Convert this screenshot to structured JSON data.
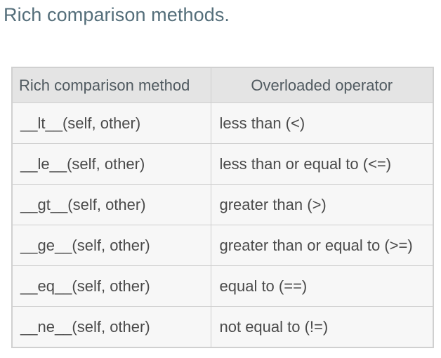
{
  "heading": "Rich comparison methods.",
  "table": {
    "headers": [
      "Rich comparison method",
      "Overloaded operator"
    ],
    "rows": [
      [
        "__lt__(self, other)",
        "less than (<)"
      ],
      [
        "__le__(self, other)",
        "less than or equal to (<=)"
      ],
      [
        "__gt__(self, other)",
        "greater than (>)"
      ],
      [
        "__ge__(self, other)",
        "greater than or equal to (>=)"
      ],
      [
        "__eq__(self, other)",
        "equal to (==)"
      ],
      [
        "__ne__(self, other)",
        "not equal to (!=)"
      ]
    ]
  },
  "colors": {
    "heading": "#546e7a",
    "header_bg": "#e4e4e4",
    "cell_bg": "#f7f7f7",
    "border": "#d0d0d0"
  }
}
